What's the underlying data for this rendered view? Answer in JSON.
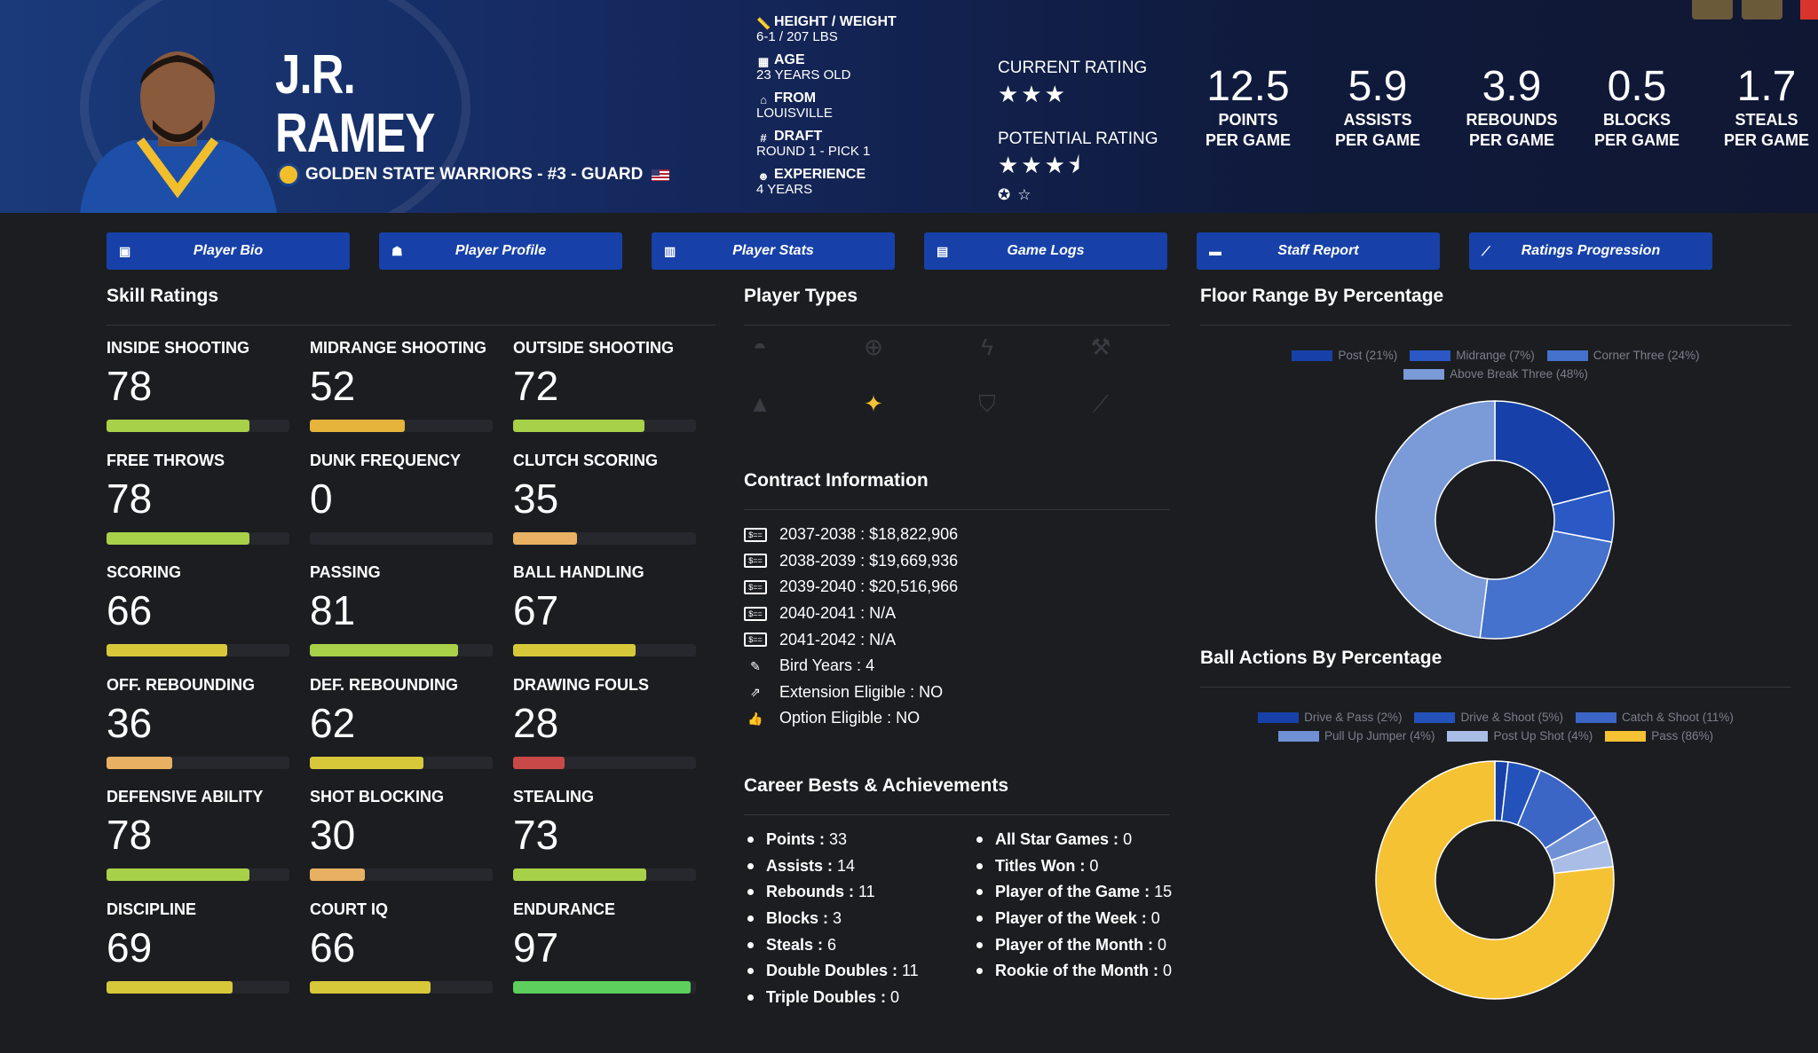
{
  "player": {
    "first_name": "J.R.",
    "last_name": "RAMEY",
    "team_line": "GOLDEN STATE WARRIORS - #3 - GUARD",
    "bio": [
      {
        "label": "HEIGHT / WEIGHT",
        "value": "6-1 / 207 LBS",
        "icon": "ruler-icon"
      },
      {
        "label": "AGE",
        "value": "23 YEARS OLD",
        "icon": "calendar-icon"
      },
      {
        "label": "FROM",
        "value": "LOUISVILLE",
        "icon": "school-icon"
      },
      {
        "label": "DRAFT",
        "value": "ROUND 1 - PICK 1",
        "icon": "hash-icon"
      },
      {
        "label": "EXPERIENCE",
        "value": "4 YEARS",
        "icon": "user-clock-icon"
      }
    ],
    "current_rating_label": "CURRENT RATING",
    "current_rating_stars": "★★★",
    "potential_rating_label": "POTENTIAL RATING",
    "potential_rating_stars": "★★★⯨"
  },
  "stats": [
    {
      "value": "12.5",
      "line1": "POINTS",
      "line2": "PER GAME"
    },
    {
      "value": "5.9",
      "line1": "ASSISTS",
      "line2": "PER GAME"
    },
    {
      "value": "3.9",
      "line1": "REBOUNDS",
      "line2": "PER GAME"
    },
    {
      "value": "0.5",
      "line1": "BLOCKS",
      "line2": "PER GAME"
    },
    {
      "value": "1.7",
      "line1": "STEALS",
      "line2": "PER GAME"
    }
  ],
  "tabs": [
    {
      "label": "Player Bio",
      "icon": "id-card-icon"
    },
    {
      "label": "Player Profile",
      "icon": "user-profile-icon"
    },
    {
      "label": "Player Stats",
      "icon": "bar-chart-icon"
    },
    {
      "label": "Game Logs",
      "icon": "clipboard-icon"
    },
    {
      "label": "Staff Report",
      "icon": "comment-icon"
    },
    {
      "label": "Ratings Progression",
      "icon": "line-chart-icon"
    }
  ],
  "skills_title": "Skill Ratings",
  "skills": [
    {
      "name": "INSIDE SHOOTING",
      "value": "78",
      "color": "#a8d14a"
    },
    {
      "name": "MIDRANGE SHOOTING",
      "value": "52",
      "color": "#e6b43a"
    },
    {
      "name": "OUTSIDE SHOOTING",
      "value": "72",
      "color": "#a8d14a"
    },
    {
      "name": "FREE THROWS",
      "value": "78",
      "color": "#a8d14a"
    },
    {
      "name": "DUNK FREQUENCY",
      "value": "0",
      "color": "#c94848"
    },
    {
      "name": "CLUTCH SCORING",
      "value": "35",
      "color": "#e8b062"
    },
    {
      "name": "SCORING",
      "value": "66",
      "color": "#d7c83a"
    },
    {
      "name": "PASSING",
      "value": "81",
      "color": "#a8d14a"
    },
    {
      "name": "BALL HANDLING",
      "value": "67",
      "color": "#d7c83a"
    },
    {
      "name": "OFF. REBOUNDING",
      "value": "36",
      "color": "#e8b062"
    },
    {
      "name": "DEF. REBOUNDING",
      "value": "62",
      "color": "#d7c83a"
    },
    {
      "name": "DRAWING FOULS",
      "value": "28",
      "color": "#c94848"
    },
    {
      "name": "DEFENSIVE ABILITY",
      "value": "78",
      "color": "#a8d14a"
    },
    {
      "name": "SHOT BLOCKING",
      "value": "30",
      "color": "#e8b062"
    },
    {
      "name": "STEALING",
      "value": "73",
      "color": "#a8d14a"
    },
    {
      "name": "DISCIPLINE",
      "value": "69",
      "color": "#d7c83a"
    },
    {
      "name": "COURT IQ",
      "value": "66",
      "color": "#d7c83a"
    },
    {
      "name": "ENDURANCE",
      "value": "97",
      "color": "#5ccf5c"
    }
  ],
  "player_types_title": "Player Types",
  "player_types": [
    {
      "icon": "basketball-hand-icon",
      "active": false
    },
    {
      "icon": "crosshair-icon",
      "active": false
    },
    {
      "icon": "lightning-icon",
      "active": false
    },
    {
      "icon": "hammer-icon",
      "active": false
    },
    {
      "icon": "cone-icon",
      "active": false
    },
    {
      "icon": "magic-wand-icon",
      "active": true
    },
    {
      "icon": "shield-icon",
      "active": false
    },
    {
      "icon": "broom-icon",
      "active": false
    }
  ],
  "contract_title": "Contract Information",
  "contract": [
    {
      "label": "2037-2038 :",
      "value": "$18,822,906",
      "icon": "money-card-icon"
    },
    {
      "label": "2038-2039 :",
      "value": "$19,669,936",
      "icon": "money-card-icon"
    },
    {
      "label": "2039-2040 :",
      "value": "$20,516,966",
      "icon": "money-card-icon"
    },
    {
      "label": "2040-2041 :",
      "value": "N/A",
      "icon": "money-card-icon"
    },
    {
      "label": "2041-2042 :",
      "value": "N/A",
      "icon": "money-card-icon"
    },
    {
      "label": "Bird Years :",
      "value": "4",
      "icon": "feather-icon"
    },
    {
      "label": "Extension Eligible :",
      "value": "NO",
      "icon": "external-link-icon"
    },
    {
      "label": "Option Eligible :",
      "value": "NO",
      "icon": "thumbs-up-icon"
    }
  ],
  "career_title": "Career Bests & Achievements",
  "career_left": [
    {
      "label": "Points :",
      "value": "33"
    },
    {
      "label": "Assists :",
      "value": "14"
    },
    {
      "label": "Rebounds :",
      "value": "11"
    },
    {
      "label": "Blocks :",
      "value": "3"
    },
    {
      "label": "Steals :",
      "value": "6"
    },
    {
      "label": "Double Doubles :",
      "value": "11"
    },
    {
      "label": "Triple Doubles :",
      "value": "0"
    }
  ],
  "career_right": [
    {
      "label": "All Star Games :",
      "value": "0"
    },
    {
      "label": "Titles Won :",
      "value": "0"
    },
    {
      "label": "Player of the Game :",
      "value": "15"
    },
    {
      "label": "Player of the Week :",
      "value": "0"
    },
    {
      "label": "Player of the Month :",
      "value": "0"
    },
    {
      "label": "Rookie of the Month :",
      "value": "0"
    }
  ],
  "floor_title": "Floor Range By Percentage",
  "ball_title": "Ball Actions By Percentage",
  "chart_data": [
    {
      "type": "pie",
      "title": "Floor Range By Percentage",
      "categories": [
        "Post",
        "Midrange",
        "Corner Three",
        "Above Break Three"
      ],
      "legend_labels": [
        "Post (21%)",
        "Midrange (7%)",
        "Corner Three (24%)",
        "Above Break Three (48%)"
      ],
      "values": [
        21,
        7,
        24,
        48
      ],
      "colors": [
        "#1741a8",
        "#2a58c4",
        "#4472cc",
        "#7a9ad8"
      ],
      "legend": "top"
    },
    {
      "type": "pie",
      "title": "Ball Actions By Percentage",
      "categories": [
        "Drive & Pass",
        "Drive & Shoot",
        "Catch & Shoot",
        "Pull Up Jumper",
        "Post Up Shot",
        "Pass"
      ],
      "legend_labels": [
        "Drive & Pass (2%)",
        "Drive & Shoot (5%)",
        "Catch & Shoot (11%)",
        "Pull Up Jumper (4%)",
        "Post Up Shot (4%)",
        "Pass (86%)"
      ],
      "values": [
        2,
        5,
        11,
        4,
        4,
        86
      ],
      "colors": [
        "#1741a8",
        "#2452bb",
        "#3c66c6",
        "#6f90d4",
        "#a9bde6",
        "#f5c233"
      ],
      "legend": "top"
    }
  ]
}
